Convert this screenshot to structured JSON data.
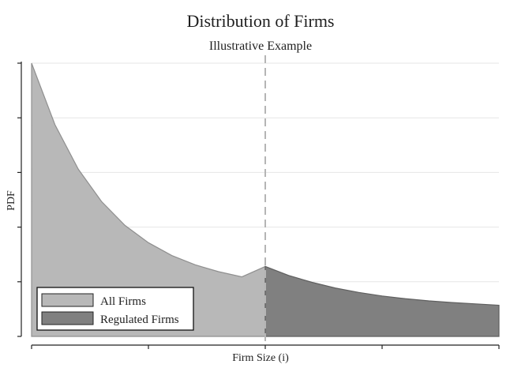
{
  "chart_data": {
    "type": "area",
    "title": "Distribution of Firms",
    "subtitle": "Illustrative Example",
    "xlabel": "Firm Size (i)",
    "ylabel": "PDF",
    "xlim": [
      0,
      1
    ],
    "ylim": [
      0,
      1
    ],
    "x_ticks": [
      0,
      0.25,
      0.5,
      0.75,
      1
    ],
    "y_ticks": [
      0,
      0.2,
      0.4,
      0.6,
      0.8,
      1.0
    ],
    "x_tick_labels": [],
    "y_tick_labels": [],
    "grid": true,
    "legend_position": "bottom-left",
    "threshold_x": 0.5,
    "series": [
      {
        "name": "All Firms",
        "color": "#b8b8b8",
        "stroke": "#8f8f8f",
        "x": [
          0,
          0.05,
          0.1,
          0.15,
          0.2,
          0.25,
          0.3,
          0.35,
          0.4,
          0.45,
          0.5
        ],
        "values": [
          1.0,
          0.775,
          0.612,
          0.493,
          0.406,
          0.343,
          0.296,
          0.262,
          0.237,
          0.218,
          0.256
        ]
      },
      {
        "name": "Regulated Firms",
        "color": "#808080",
        "stroke": "#5f5f5f",
        "x": [
          0.5,
          0.55,
          0.6,
          0.65,
          0.7,
          0.75,
          0.8,
          0.85,
          0.9,
          0.95,
          1.0
        ],
        "values": [
          0.256,
          0.223,
          0.198,
          0.177,
          0.161,
          0.148,
          0.138,
          0.13,
          0.124,
          0.119,
          0.114
        ]
      }
    ]
  }
}
